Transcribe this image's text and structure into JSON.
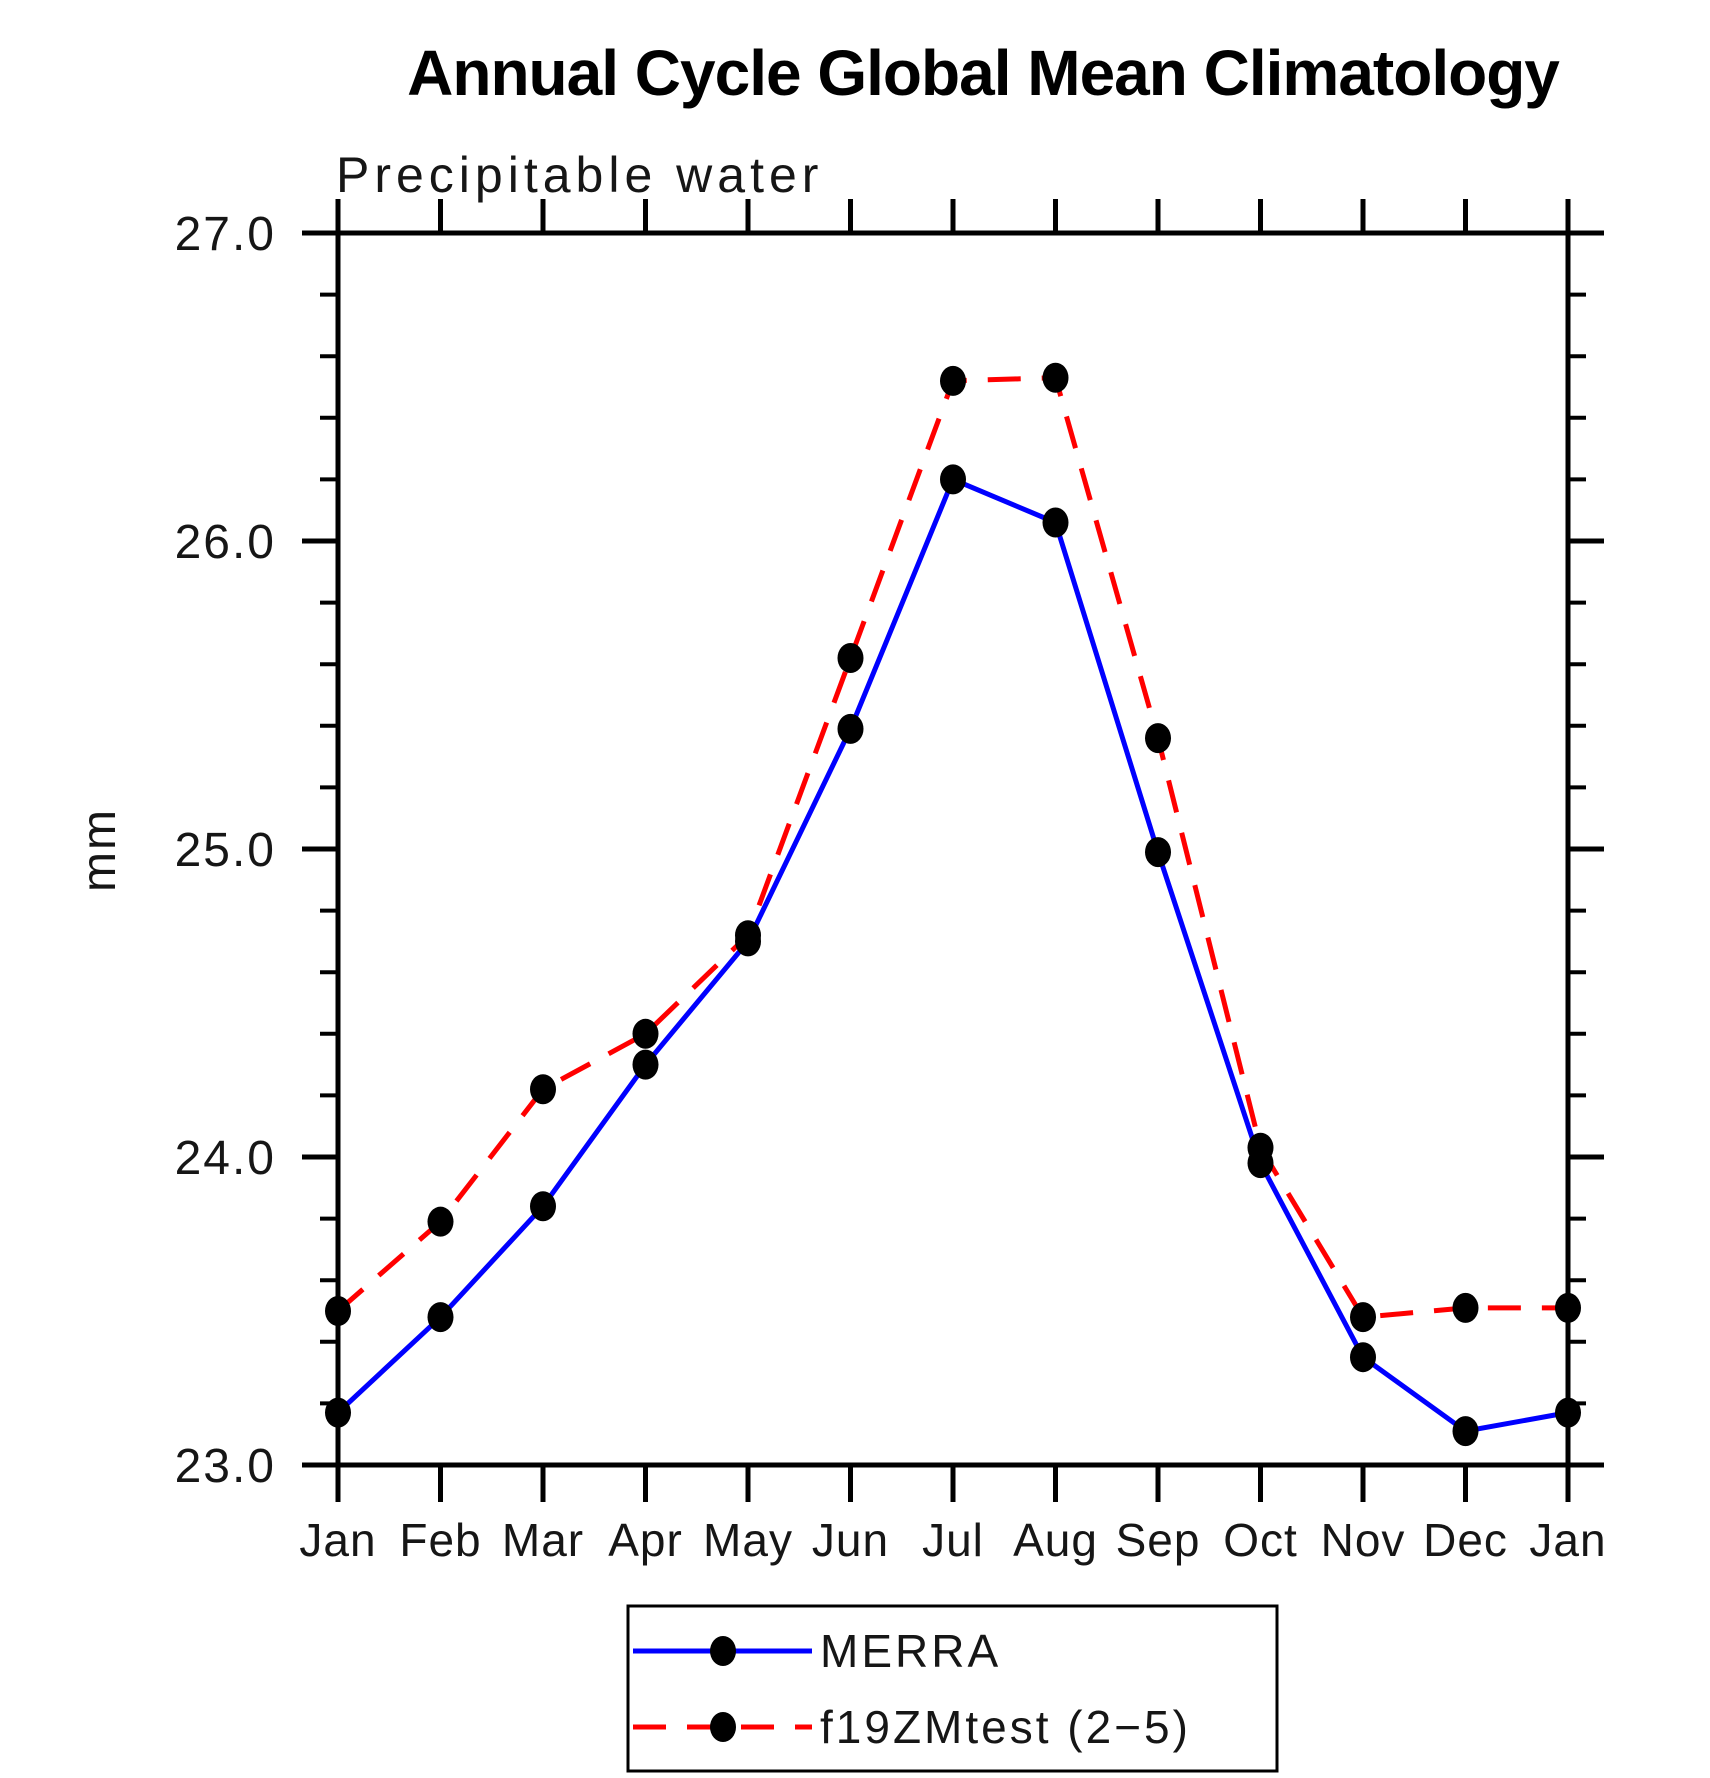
{
  "title": "Annual Cycle Global Mean Climatology",
  "chart_data": {
    "type": "line",
    "title": "Annual Cycle Global Mean Climatology",
    "subtitle": "Precipitable water",
    "xlabel": "",
    "ylabel": "mm",
    "categories": [
      "Jan",
      "Feb",
      "Mar",
      "Apr",
      "May",
      "Jun",
      "Jul",
      "Aug",
      "Sep",
      "Oct",
      "Nov",
      "Dec",
      "Jan"
    ],
    "ylim": [
      23.0,
      27.0
    ],
    "ytick_major_step": 1.0,
    "ytick_minor_step": 0.2,
    "ytick_labels": [
      "23.0",
      "24.0",
      "25.0",
      "26.0",
      "27.0"
    ],
    "grid": false,
    "legend_position": "bottom-center",
    "marker_color": "#000000",
    "frame_color": "#000000",
    "series": [
      {
        "name": "MERRA",
        "color": "#0000ff",
        "style": "solid",
        "marker": "circle",
        "values": [
          23.17,
          23.48,
          23.84,
          24.3,
          24.7,
          25.39,
          26.2,
          26.06,
          24.99,
          23.98,
          23.35,
          23.11,
          23.17
        ]
      },
      {
        "name": "f19ZMtest (2−5)",
        "color": "#ff0000",
        "style": "dashed",
        "marker": "circle",
        "values": [
          23.5,
          23.79,
          24.22,
          24.4,
          24.72,
          25.62,
          26.52,
          26.53,
          25.36,
          24.03,
          23.48,
          23.51,
          23.51
        ]
      }
    ]
  }
}
